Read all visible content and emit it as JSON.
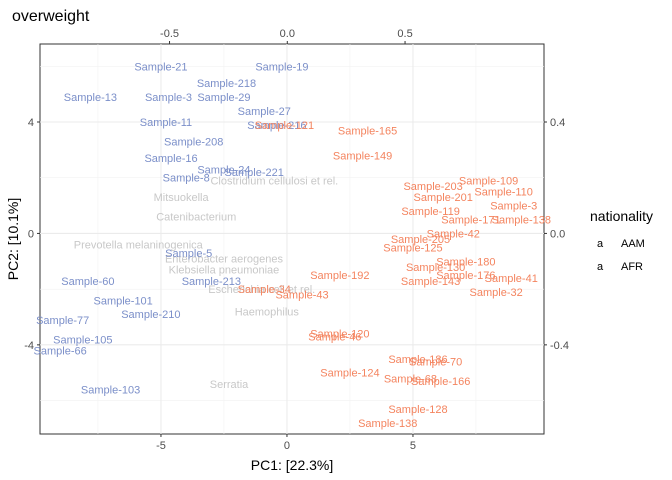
{
  "chart_data": {
    "type": "scatter",
    "title": "overweight",
    "xlabel": "PC1: [22.3%]",
    "ylabel": "PC2: [10.1%]",
    "xlim": [
      -9.8,
      10.2
    ],
    "ylim": [
      -7.2,
      6.8
    ],
    "x_ticks": [
      -5,
      0,
      5
    ],
    "y_ticks": [
      -4,
      0,
      4
    ],
    "secondary_xlim": [
      -1.05,
      1.09
    ],
    "secondary_x_ticks": [
      -0.5,
      0.0,
      0.5
    ],
    "secondary_x_tick_labels": [
      "-0.5",
      "0.0",
      "0.5"
    ],
    "secondary_ylim": [
      -0.72,
      0.68
    ],
    "secondary_y_ticks": [
      -0.4,
      0.0,
      0.4
    ],
    "secondary_y_tick_labels": [
      "-0.4",
      "0.0",
      "0.4"
    ],
    "grid": true,
    "legend_position": "right",
    "legend": {
      "title": "nationality",
      "entries": [
        {
          "name": "AAM",
          "color": "#F4845F",
          "key": "a"
        },
        {
          "name": "AFR",
          "color": "#7B8FC9",
          "key": "a"
        }
      ]
    },
    "series": [
      {
        "name": "AFR",
        "color": "#7B8FC9",
        "points": [
          {
            "label": "Sample-21",
            "x": -5.0,
            "y": 6.0
          },
          {
            "label": "Sample-19",
            "x": -0.2,
            "y": 6.0
          },
          {
            "label": "Sample-218",
            "x": -2.4,
            "y": 5.4
          },
          {
            "label": "Sample-13",
            "x": -7.8,
            "y": 4.9
          },
          {
            "label": "Sample-3",
            "x": -4.7,
            "y": 4.9
          },
          {
            "label": "Sample-29",
            "x": -2.5,
            "y": 4.9
          },
          {
            "label": "Sample-27",
            "x": -0.9,
            "y": 4.4
          },
          {
            "label": "Sample-11",
            "x": -4.8,
            "y": 4.0
          },
          {
            "label": "Sample-216",
            "x": -0.4,
            "y": 3.9
          },
          {
            "label": "Sample-208",
            "x": -3.7,
            "y": 3.3
          },
          {
            "label": "Sample-16",
            "x": -4.6,
            "y": 2.7
          },
          {
            "label": "Sample-24",
            "x": -2.5,
            "y": 2.3
          },
          {
            "label": "Sample-221",
            "x": -1.3,
            "y": 2.2
          },
          {
            "label": "Sample-8",
            "x": -4.0,
            "y": 2.0
          },
          {
            "label": "Sample-5",
            "x": -3.9,
            "y": -0.7
          },
          {
            "label": "Sample-213",
            "x": -3.0,
            "y": -1.7
          },
          {
            "label": "Sample-60",
            "x": -7.9,
            "y": -1.7
          },
          {
            "label": "Sample-101",
            "x": -6.5,
            "y": -2.4
          },
          {
            "label": "Sample-210",
            "x": -5.4,
            "y": -2.9
          },
          {
            "label": "Sample-77",
            "x": -8.9,
            "y": -3.1
          },
          {
            "label": "Sample-105",
            "x": -8.1,
            "y": -3.8
          },
          {
            "label": "Sample-66",
            "x": -9.0,
            "y": -4.2
          },
          {
            "label": "Sample-103",
            "x": -7.0,
            "y": -5.6
          }
        ]
      },
      {
        "name": "AAM",
        "color": "#F4845F",
        "points": [
          {
            "label": "Sample-121",
            "x": -0.1,
            "y": 3.9
          },
          {
            "label": "Sample-165",
            "x": 3.2,
            "y": 3.7
          },
          {
            "label": "Sample-149",
            "x": 3.0,
            "y": 2.8
          },
          {
            "label": "Sample-109",
            "x": 8.0,
            "y": 1.9
          },
          {
            "label": "Sample-203",
            "x": 5.8,
            "y": 1.7
          },
          {
            "label": "Sample-110",
            "x": 8.6,
            "y": 1.5
          },
          {
            "label": "Sample-201",
            "x": 6.2,
            "y": 1.3
          },
          {
            "label": "Sample-3",
            "x": 9.0,
            "y": 1.0
          },
          {
            "label": "Sample-119",
            "x": 5.7,
            "y": 0.8
          },
          {
            "label": "Sample-171",
            "x": 7.3,
            "y": 0.5
          },
          {
            "label": "Sample-138",
            "x": 9.3,
            "y": 0.5
          },
          {
            "label": "Sample-42",
            "x": 6.6,
            "y": 0.0
          },
          {
            "label": "Sample-205",
            "x": 5.3,
            "y": -0.2
          },
          {
            "label": "Sample-125",
            "x": 5.0,
            "y": -0.5
          },
          {
            "label": "Sample-192",
            "x": 2.1,
            "y": -1.5
          },
          {
            "label": "Sample-180",
            "x": 7.1,
            "y": -1.0
          },
          {
            "label": "Sample-130",
            "x": 5.9,
            "y": -1.2
          },
          {
            "label": "Sample-176",
            "x": 7.1,
            "y": -1.5
          },
          {
            "label": "Sample-143",
            "x": 5.7,
            "y": -1.7
          },
          {
            "label": "Sample-41",
            "x": 8.9,
            "y": -1.6
          },
          {
            "label": "Sample-32",
            "x": 8.3,
            "y": -2.1
          },
          {
            "label": "Sample-34",
            "x": -0.9,
            "y": -2.0
          },
          {
            "label": "Sample-43",
            "x": 0.6,
            "y": -2.2
          },
          {
            "label": "Sample-120",
            "x": 2.1,
            "y": -3.6
          },
          {
            "label": "Sample-46",
            "x": 1.9,
            "y": -3.7
          },
          {
            "label": "Sample-186",
            "x": 5.2,
            "y": -4.5
          },
          {
            "label": "Sample-70",
            "x": 5.9,
            "y": -4.6
          },
          {
            "label": "Sample-124",
            "x": 2.5,
            "y": -5.0
          },
          {
            "label": "Sample-68",
            "x": 4.9,
            "y": -5.2
          },
          {
            "label": "Sample-166",
            "x": 6.1,
            "y": -5.3
          },
          {
            "label": "Sample-128",
            "x": 5.2,
            "y": -6.3
          },
          {
            "label": "Sample-138",
            "x": 4.0,
            "y": -6.8
          }
        ]
      }
    ],
    "taxa": {
      "color": "#C8C8C8",
      "points": [
        {
          "label": "Clostridium cellulosi et rel.",
          "x": -0.5,
          "y": 1.9
        },
        {
          "label": "Mitsuokella",
          "x": -4.2,
          "y": 1.3
        },
        {
          "label": "Prevotella melaninogenica",
          "x": -5.9,
          "y": -0.4
        },
        {
          "label": "Klebsiella pneumoniae",
          "x": -2.5,
          "y": -1.3
        },
        {
          "label": "Escherichia coli et rel.",
          "x": -1.0,
          "y": -2.0
        },
        {
          "label": "Haemophilus",
          "x": -0.8,
          "y": -2.8
        },
        {
          "label": "Serratia",
          "x": -2.3,
          "y": -5.4
        },
        {
          "label": "Enterobacter aerogenes",
          "x": -2.5,
          "y": -0.9
        },
        {
          "label": "Catenibacterium",
          "x": -3.6,
          "y": 0.6
        }
      ]
    }
  }
}
